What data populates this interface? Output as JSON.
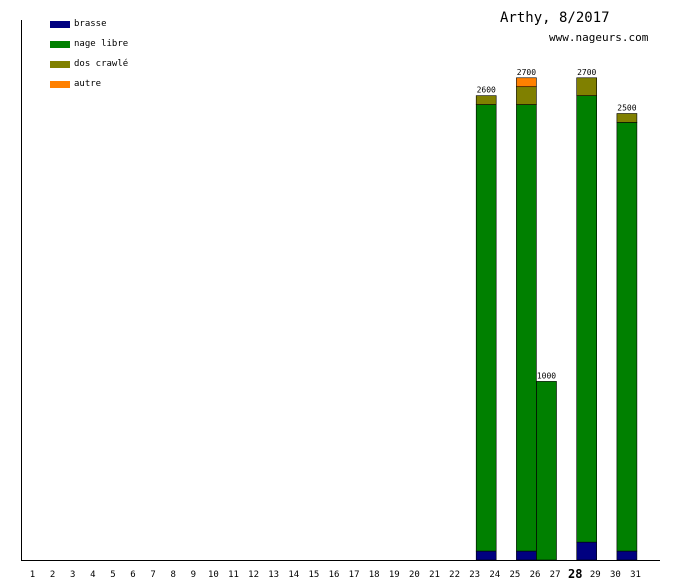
{
  "header": {
    "title": "Arthy, 8/2017",
    "subtitle": "www.nageurs.com"
  },
  "colors": {
    "brasse": "#000080",
    "nage_libre": "#008000",
    "dos_crawle": "#808000",
    "autre": "#ff8000"
  },
  "chart_data": {
    "type": "bar",
    "stacked": true,
    "categories": [
      "1",
      "2",
      "3",
      "4",
      "5",
      "6",
      "7",
      "8",
      "9",
      "10",
      "11",
      "12",
      "13",
      "14",
      "15",
      "16",
      "17",
      "18",
      "19",
      "20",
      "21",
      "22",
      "23",
      "24",
      "25",
      "26",
      "27",
      "28",
      "29",
      "30",
      "31"
    ],
    "highlighted_category": "28",
    "ylim": [
      0,
      3000
    ],
    "legend_position": "top-left",
    "grid": false,
    "series": [
      {
        "name": "brasse",
        "color": "#000080",
        "values": [
          0,
          0,
          0,
          0,
          0,
          0,
          0,
          0,
          0,
          0,
          0,
          0,
          0,
          0,
          0,
          0,
          0,
          0,
          0,
          0,
          0,
          0,
          50,
          0,
          50,
          0,
          0,
          100,
          0,
          50,
          0
        ]
      },
      {
        "name": "nage libre",
        "color": "#008000",
        "values": [
          0,
          0,
          0,
          0,
          0,
          0,
          0,
          0,
          0,
          0,
          0,
          0,
          0,
          0,
          0,
          0,
          0,
          0,
          0,
          0,
          0,
          0,
          2500,
          0,
          2500,
          1000,
          0,
          2500,
          0,
          2400,
          0
        ]
      },
      {
        "name": "dos crawlé",
        "color": "#808000",
        "values": [
          0,
          0,
          0,
          0,
          0,
          0,
          0,
          0,
          0,
          0,
          0,
          0,
          0,
          0,
          0,
          0,
          0,
          0,
          0,
          0,
          0,
          0,
          50,
          0,
          100,
          0,
          0,
          100,
          0,
          50,
          0
        ]
      },
      {
        "name": "autre",
        "color": "#ff8000",
        "values": [
          0,
          0,
          0,
          0,
          0,
          0,
          0,
          0,
          0,
          0,
          0,
          0,
          0,
          0,
          0,
          0,
          0,
          0,
          0,
          0,
          0,
          0,
          0,
          0,
          50,
          0,
          0,
          0,
          0,
          0,
          0
        ]
      }
    ],
    "totals": [
      {
        "category": "23",
        "label": "2600"
      },
      {
        "category": "25",
        "label": "2700"
      },
      {
        "category": "26",
        "label": "1000"
      },
      {
        "category": "28",
        "label": "2700"
      },
      {
        "category": "30",
        "label": "2500"
      }
    ]
  }
}
